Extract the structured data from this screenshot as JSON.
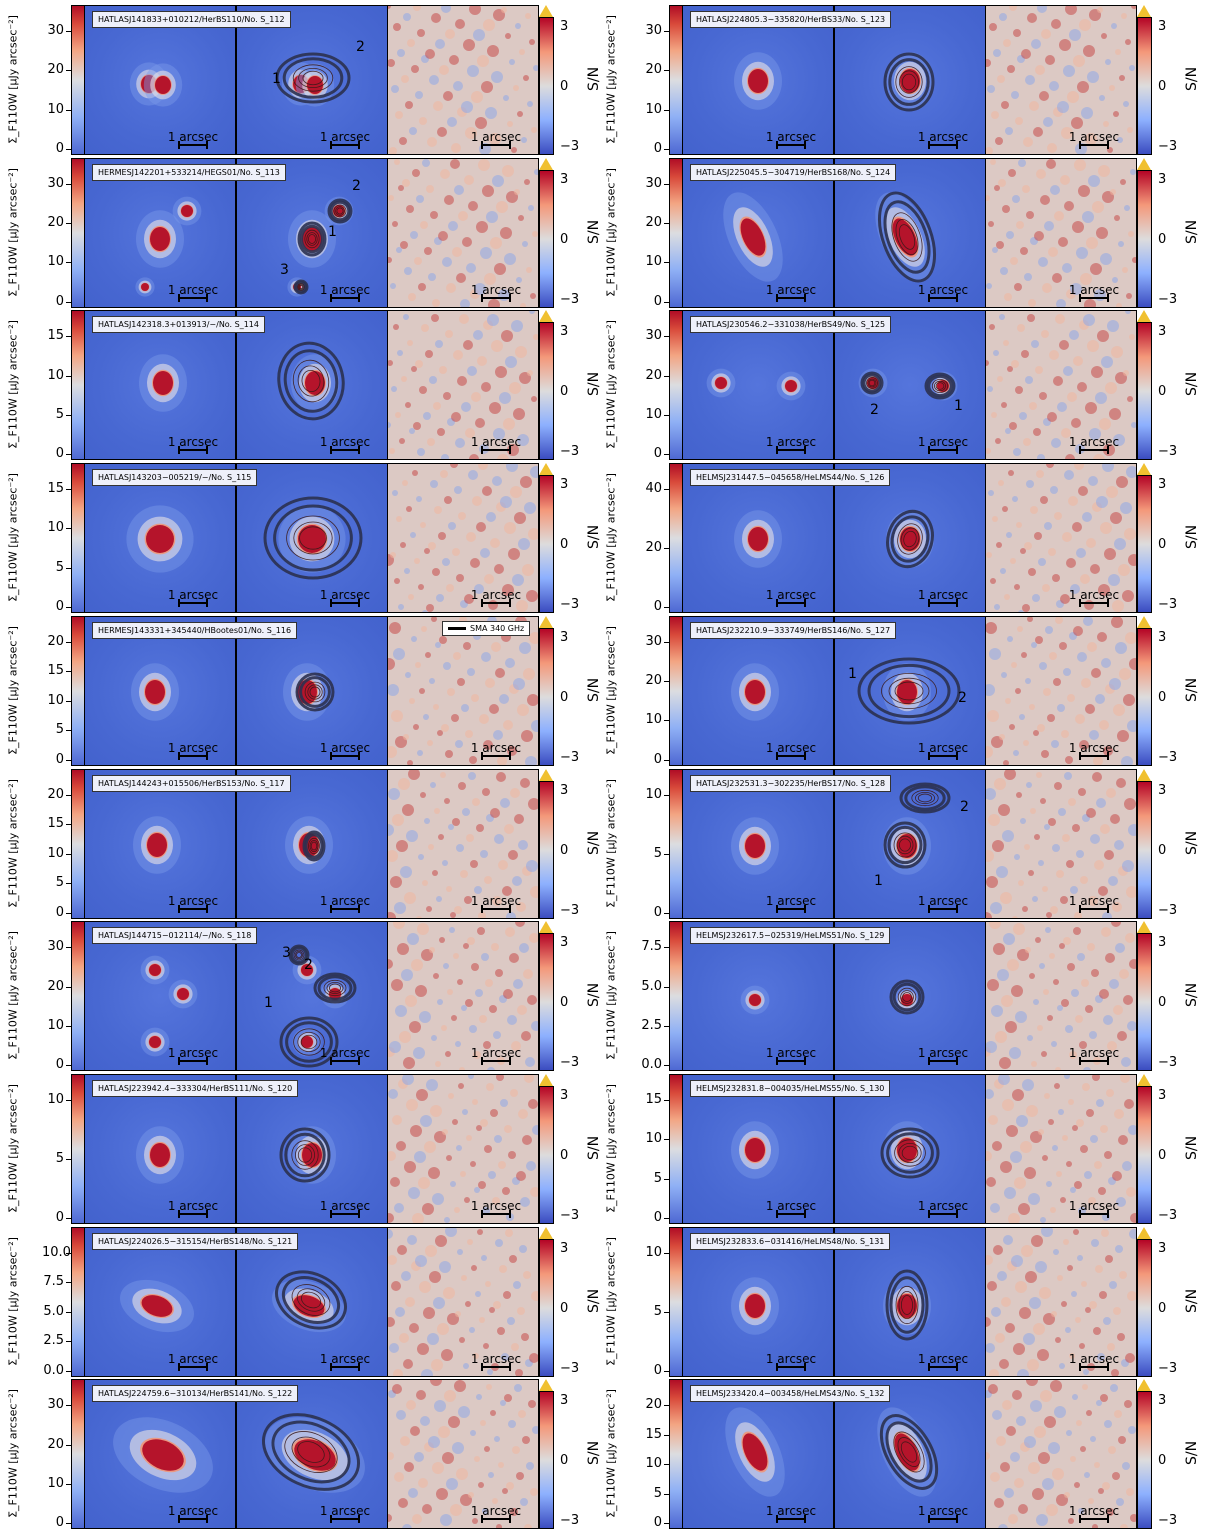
{
  "figure": {
    "y_axis_label": "Σ_F110W [μJy arcsec⁻²]",
    "sn_label": "S/N",
    "sn_ticks": [
      "3",
      "0",
      "−3"
    ],
    "scale_label": "1 arcsec",
    "legend_label": "SMA 340 GHz"
  },
  "colors": {
    "model_bg": "#4a6ad4",
    "core": "#b5142b",
    "residual_bg": "#dccac4"
  },
  "left": [
    {
      "id": "HATLASJ141833+010212/HerBS110/No. S_112",
      "ticks": [
        "30",
        "20",
        "10",
        "0"
      ],
      "labels": [
        "2",
        "1"
      ]
    },
    {
      "id": "HERMESJ142201+533214/HEGS01/No. S_113",
      "ticks": [
        "30",
        "20",
        "10",
        "0"
      ],
      "labels": [
        "2",
        "1",
        "3"
      ]
    },
    {
      "id": "HATLASJ142318.3+013913/−/No. S_114",
      "ticks": [
        "15",
        "10",
        "5",
        "0"
      ],
      "labels": []
    },
    {
      "id": "HATLASJ143203−005219/−/No. S_115",
      "ticks": [
        "15",
        "10",
        "5",
        "0"
      ],
      "labels": []
    },
    {
      "id": "HERMESJ143331+345440/HBootes01/No. S_116",
      "ticks": [
        "20",
        "15",
        "10",
        "5",
        "0"
      ],
      "labels": []
    },
    {
      "id": "HATLASJ144243+015506/HerBS153/No. S_117",
      "ticks": [
        "20",
        "15",
        "10",
        "5",
        "0"
      ],
      "labels": []
    },
    {
      "id": "HATLASJ144715−012114/−/No. S_118",
      "ticks": [
        "30",
        "20",
        "10",
        "0"
      ],
      "labels": [
        "3",
        "2",
        "1"
      ]
    },
    {
      "id": "HATLASJ223942.4−333304/HerBS111/No. S_120",
      "ticks": [
        "10",
        "5",
        "0"
      ],
      "labels": []
    },
    {
      "id": "HATLASJ224026.5−315154/HerBS148/No. S_121",
      "ticks": [
        "10.0",
        "7.5",
        "5.0",
        "2.5",
        "0.0"
      ],
      "labels": []
    },
    {
      "id": "HATLASJ224759.6−310134/HerBS141/No. S_122",
      "ticks": [
        "30",
        "20",
        "10",
        "0"
      ],
      "labels": []
    }
  ],
  "right": [
    {
      "id": "HATLASJ224805.3−335820/HerBS33/No. S_123",
      "ticks": [
        "30",
        "20",
        "10",
        "0"
      ],
      "labels": []
    },
    {
      "id": "HATLASJ225045.5−304719/HerBS168/No. S_124",
      "ticks": [
        "30",
        "20",
        "10",
        "0"
      ],
      "labels": []
    },
    {
      "id": "HATLASJ230546.2−331038/HerBS49/No. S_125",
      "ticks": [
        "30",
        "20",
        "10",
        "0"
      ],
      "labels": [
        "2",
        "1"
      ]
    },
    {
      "id": "HELMSJ231447.5−045658/HeLMS44/No. S_126",
      "ticks": [
        "40",
        "20",
        "0"
      ],
      "labels": []
    },
    {
      "id": "HATLASJ232210.9−333749/HerBS146/No. S_127",
      "ticks": [
        "30",
        "20",
        "10",
        "0"
      ],
      "labels": [
        "1",
        "2"
      ]
    },
    {
      "id": "HATLASJ232531.3−302235/HerBS17/No. S_128",
      "ticks": [
        "10",
        "5",
        "0"
      ],
      "labels": [
        "2",
        "1"
      ]
    },
    {
      "id": "HELMSJ232617.5−025319/HeLMS51/No. S_129",
      "ticks": [
        "7.5",
        "5.0",
        "2.5",
        "0.0"
      ],
      "labels": []
    },
    {
      "id": "HELMSJ232831.8−004035/HeLMS55/No. S_130",
      "ticks": [
        "15",
        "10",
        "5",
        "0"
      ],
      "labels": []
    },
    {
      "id": "HELMSJ232833.6−031416/HeLMS48/No. S_131",
      "ticks": [
        "10",
        "5",
        "0"
      ],
      "labels": []
    },
    {
      "id": "HELMSJ233420.4−003458/HeLMS43/No. S_132",
      "ticks": [
        "20",
        "15",
        "10",
        "5",
        "0"
      ],
      "labels": []
    }
  ]
}
